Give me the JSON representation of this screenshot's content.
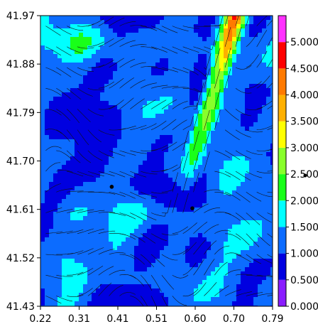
{
  "chart_data": {
    "type": "heatmap",
    "title": "",
    "xlabel": "",
    "ylabel": "",
    "xlim": [
      0.22,
      0.79
    ],
    "ylim": [
      41.43,
      41.97
    ],
    "x_ticks": [
      "0.22",
      "0.31",
      "0.41",
      "0.51",
      "0.60",
      "0.70",
      "0.79"
    ],
    "y_ticks": [
      "41.97",
      "41.88",
      "41.79",
      "41.70",
      "41.61",
      "41.52",
      "41.43"
    ],
    "colorbar": {
      "range": [
        0.0,
        5.5
      ],
      "labels": [
        "0.000",
        "0.500",
        "1.000",
        "1.500",
        "2.000",
        "2.500",
        "3.000",
        "3.500",
        "4.000",
        "4.500",
        "5.000"
      ],
      "bands": [
        {
          "from": 0.0,
          "to": 0.5,
          "color": "#8a1cff"
        },
        {
          "from": 0.5,
          "to": 1.0,
          "color": "#0000e0"
        },
        {
          "from": 1.0,
          "to": 1.5,
          "color": "#0c6cff"
        },
        {
          "from": 1.5,
          "to": 2.0,
          "color": "#00ffff"
        },
        {
          "from": 2.0,
          "to": 2.5,
          "color": "#19ff19"
        },
        {
          "from": 2.5,
          "to": 3.0,
          "color": "#88ff2a"
        },
        {
          "from": 3.0,
          "to": 3.5,
          "color": "#ffff00"
        },
        {
          "from": 3.5,
          "to": 4.0,
          "color": "#ffb000"
        },
        {
          "from": 4.0,
          "to": 4.5,
          "color": "#ff7a00"
        },
        {
          "from": 4.5,
          "to": 5.0,
          "color": "#ff0000"
        },
        {
          "from": 5.0,
          "to": 5.5,
          "color": "#ff30ff"
        }
      ]
    },
    "markers": [
      {
        "x": 0.395,
        "y": 41.652
      },
      {
        "x": 0.593,
        "y": 41.612
      }
    ],
    "grid": false,
    "legend": "colorbar-right"
  }
}
